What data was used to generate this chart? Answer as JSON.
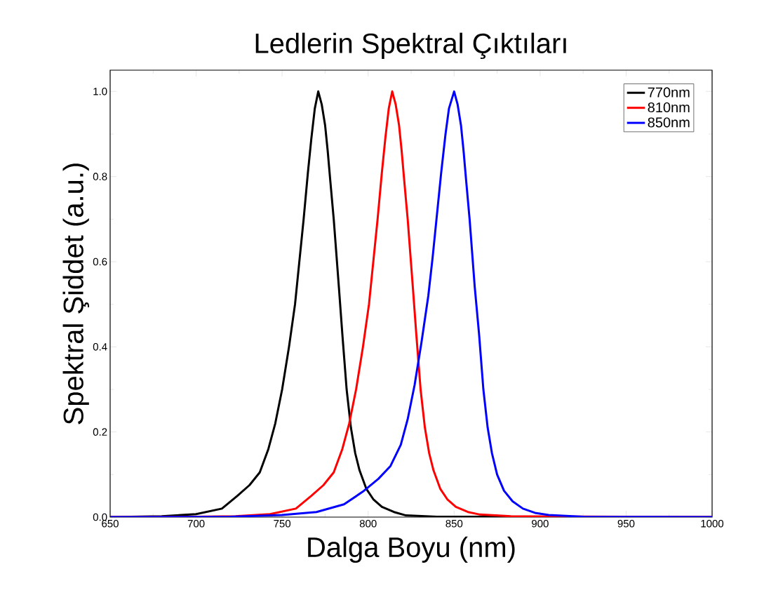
{
  "chart_data": {
    "type": "line",
    "title": "Ledlerin Spektral Çıktıları",
    "xlabel": "Dalga Boyu (nm)",
    "ylabel": "Spektral Şiddet (a.u.)",
    "xlim": [
      650,
      1000
    ],
    "ylim": [
      0,
      1.05
    ],
    "xticks": [
      650,
      700,
      750,
      800,
      850,
      900,
      950,
      1000
    ],
    "yticks": [
      {
        "value": 0,
        "label": "0.0"
      },
      {
        "value": 0.2,
        "label": "0.2"
      },
      {
        "value": 0.4,
        "label": "0.4"
      },
      {
        "value": 0.6,
        "label": "0.6"
      },
      {
        "value": 0.8,
        "label": "0.8"
      },
      {
        "value": 1.0,
        "label": "1.0"
      }
    ],
    "grid": false,
    "legend": "top right",
    "marker": "none",
    "line_style": "solid",
    "series": [
      {
        "name": "770nm",
        "color": "#000000",
        "x": [
          650,
          680,
          700,
          715,
          724,
          731,
          737,
          742,
          746,
          750,
          754,
          757.5,
          760,
          762.5,
          765,
          767,
          769,
          771,
          773,
          775,
          776.5,
          778,
          780,
          783,
          785,
          787.5,
          790,
          792.5,
          795,
          799,
          803,
          808,
          815,
          822,
          840,
          1000
        ],
        "values": [
          0,
          0.002,
          0.007,
          0.02,
          0.05,
          0.075,
          0.105,
          0.16,
          0.22,
          0.3,
          0.4,
          0.5,
          0.6,
          0.7,
          0.81,
          0.89,
          0.96,
          1.0,
          0.97,
          0.92,
          0.86,
          0.79,
          0.7,
          0.54,
          0.43,
          0.3,
          0.21,
          0.15,
          0.11,
          0.066,
          0.042,
          0.024,
          0.012,
          0.004,
          0.001,
          0
        ]
      },
      {
        "name": "810nm",
        "color": "#ff0000",
        "x": [
          650,
          700,
          723,
          743,
          758,
          767,
          774,
          780,
          785,
          789,
          793,
          797,
          800.5,
          803,
          805.5,
          808,
          810,
          812,
          814,
          816,
          818,
          819.5,
          821,
          823,
          826,
          828,
          830.5,
          833,
          835.5,
          838,
          842,
          846,
          851,
          858,
          865,
          883,
          1000
        ],
        "values": [
          0,
          0.001,
          0.002,
          0.007,
          0.02,
          0.05,
          0.075,
          0.105,
          0.16,
          0.22,
          0.3,
          0.4,
          0.5,
          0.6,
          0.7,
          0.81,
          0.89,
          0.96,
          1.0,
          0.97,
          0.92,
          0.86,
          0.79,
          0.7,
          0.54,
          0.43,
          0.3,
          0.21,
          0.15,
          0.11,
          0.066,
          0.042,
          0.024,
          0.012,
          0.006,
          0.002,
          0
        ]
      },
      {
        "name": "850nm",
        "color": "#0000ff",
        "x": [
          650,
          720,
          750,
          770,
          786,
          797,
          806,
          813,
          819,
          823,
          827,
          831,
          835,
          837.5,
          840,
          842.5,
          845,
          847,
          850,
          852,
          854,
          855.5,
          857,
          859,
          862,
          864.5,
          867,
          869.5,
          872,
          875,
          879,
          884,
          890,
          897,
          905,
          925,
          1000
        ],
        "values": [
          0,
          0.001,
          0.005,
          0.012,
          0.03,
          0.06,
          0.09,
          0.12,
          0.17,
          0.23,
          0.31,
          0.41,
          0.52,
          0.61,
          0.71,
          0.81,
          0.9,
          0.96,
          1.0,
          0.97,
          0.92,
          0.86,
          0.79,
          0.7,
          0.54,
          0.43,
          0.3,
          0.21,
          0.15,
          0.1,
          0.062,
          0.037,
          0.02,
          0.01,
          0.005,
          0.001,
          0
        ]
      }
    ]
  }
}
